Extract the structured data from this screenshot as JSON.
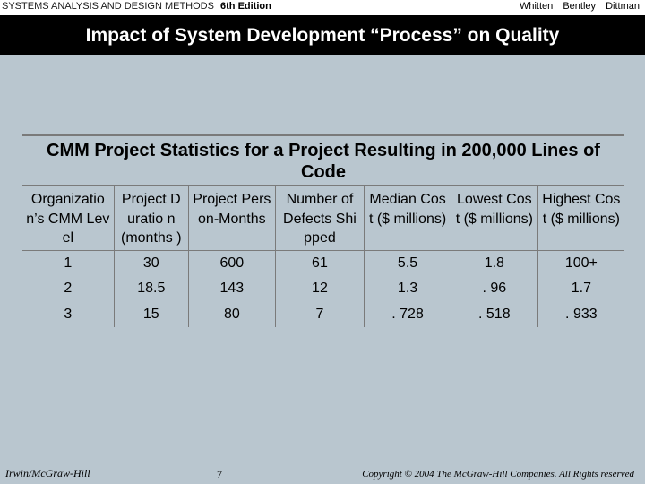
{
  "header": {
    "book_title": "SYSTEMS ANALYSIS AND DESIGN METHODS",
    "edition": "6th Edition",
    "authors": [
      "Whitten",
      "Bentley",
      "Dittman"
    ]
  },
  "slide": {
    "title": "Impact of System Development “Process” on Quality"
  },
  "table": {
    "title": "CMM Project Statistics for a Project Resulting in 200,000 Lines of Code",
    "columns": [
      "Organizatio n’s CMM Level",
      "Project Duratio n (months )",
      "Project Person-Months",
      "Number of Defects Shipped",
      "Median Cost ($ millions)",
      "Lowest Cost ($ millions)",
      "Highest Cost ($ millions)"
    ],
    "rows": [
      [
        "1",
        "30",
        "600",
        "61",
        "5.5",
        "1.8",
        "100+"
      ],
      [
        "2",
        "18.5",
        "143",
        "12",
        "1.3",
        ". 96",
        "1.7"
      ],
      [
        "3",
        "15",
        "80",
        "7",
        ". 728",
        ". 518",
        ". 933"
      ]
    ]
  },
  "footer": {
    "publisher": "Irwin/McGraw-Hill",
    "page_number": "7",
    "copyright": "Copyright © 2004 The McGraw-Hill Companies. All Rights reserved"
  }
}
